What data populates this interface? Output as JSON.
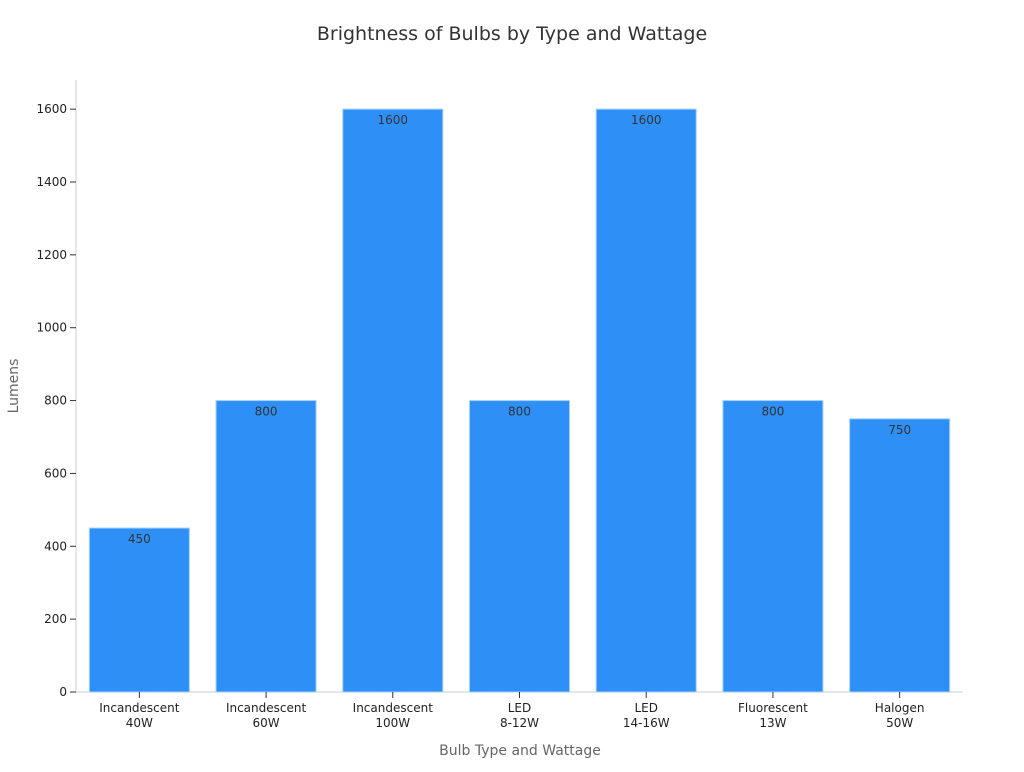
{
  "chart_data": {
    "type": "bar",
    "title": "Brightness of Bulbs by Type and Wattage",
    "xlabel": "Bulb Type and Wattage",
    "ylabel": "Lumens",
    "categories": [
      [
        "Incandescent",
        "40W"
      ],
      [
        "Incandescent",
        "60W"
      ],
      [
        "Incandescent",
        "100W"
      ],
      [
        "LED",
        "8-12W"
      ],
      [
        "LED",
        "14-16W"
      ],
      [
        "Fluorescent",
        "13W"
      ],
      [
        "Halogen",
        "50W"
      ]
    ],
    "values": [
      450,
      800,
      1600,
      800,
      1600,
      800,
      750
    ],
    "data_labels": [
      "450",
      "800",
      "1600",
      "800",
      "1600",
      "800",
      "750"
    ],
    "yticks": [
      0,
      200,
      400,
      600,
      800,
      1000,
      1200,
      1400,
      1600
    ],
    "ylim": [
      0,
      1680
    ],
    "grid": false,
    "bar_color": "#2e90f7",
    "bar_edge_color": "#9fd0ff"
  }
}
